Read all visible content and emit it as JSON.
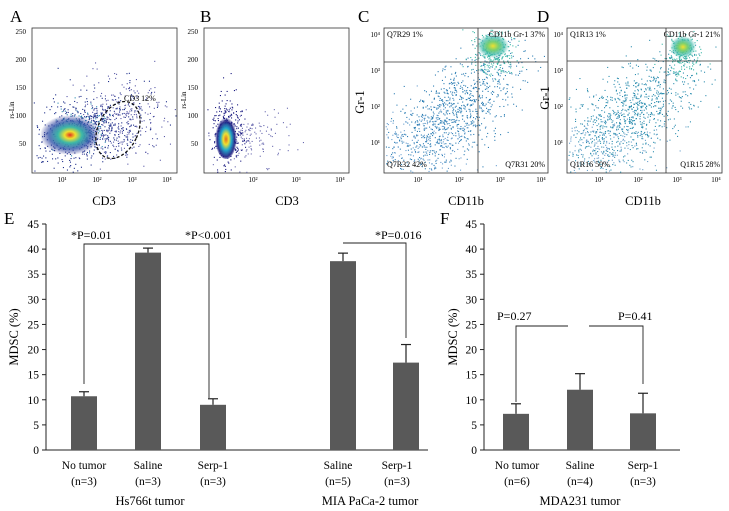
{
  "chart_data": [
    {
      "panel": "A",
      "type": "scatter",
      "xlabel": "CD3",
      "ylabel": "rs-Lin",
      "x_scale": "log",
      "xlim": [
        5,
        10000
      ],
      "ylim": [
        0,
        260
      ],
      "x_ticks": [
        "10¹",
        "10²",
        "10³",
        "10⁴"
      ],
      "y_ticks": [
        "50",
        "100",
        "150",
        "200",
        "250"
      ],
      "gate_label": "CD3 12%",
      "population": {
        "x_center": 15,
        "y_center": 60
      }
    },
    {
      "panel": "B",
      "type": "scatter",
      "xlabel": "CD3",
      "ylabel": "rs-Lin",
      "x_scale": "log",
      "xlim": [
        5,
        10000
      ],
      "ylim": [
        0,
        260
      ],
      "x_ticks": [
        "10²",
        "10³",
        "10⁴"
      ],
      "y_ticks": [
        "50",
        "100",
        "150",
        "200",
        "250"
      ],
      "population": {
        "x_center": 8,
        "y_center": 45
      }
    },
    {
      "panel": "C",
      "type": "scatter",
      "xlabel": "CD11b",
      "ylabel": "Gr-1",
      "x_scale": "log",
      "y_scale": "log",
      "xlim": [
        1,
        10000
      ],
      "ylim": [
        1,
        10000
      ],
      "x_ticks": [
        "10¹",
        "10²",
        "10³",
        "10⁴"
      ],
      "y_ticks": [
        "10¹",
        "10²",
        "10³",
        "10⁴"
      ],
      "quadrants": [
        {
          "label": "Q7R29 1%",
          "position": "top-left"
        },
        {
          "label": "CD11b Gr-1 37%",
          "position": "top-right"
        },
        {
          "label": "Q7R32 42%",
          "position": "bottom-left"
        },
        {
          "label": "Q7R31 20%",
          "position": "bottom-right"
        }
      ]
    },
    {
      "panel": "D",
      "type": "scatter",
      "xlabel": "CD11b",
      "ylabel": "Gr-1",
      "x_scale": "log",
      "y_scale": "log",
      "xlim": [
        1,
        10000
      ],
      "ylim": [
        1,
        10000
      ],
      "x_ticks": [
        "10¹",
        "10²",
        "10³",
        "10⁴"
      ],
      "y_ticks": [
        "10¹",
        "10²",
        "10³",
        "10⁴"
      ],
      "quadrants": [
        {
          "label": "Q1R13 1%",
          "position": "top-left"
        },
        {
          "label": "CD11b Gr-1 21%",
          "position": "top-right"
        },
        {
          "label": "Q1R16 50%",
          "position": "bottom-left"
        },
        {
          "label": "Q1R15 28%",
          "position": "bottom-right"
        }
      ]
    },
    {
      "panel": "E",
      "type": "bar",
      "ylabel": "MDSC (%)",
      "ylim": [
        0,
        45
      ],
      "y_ticks": [
        0,
        5,
        10,
        15,
        20,
        25,
        30,
        35,
        40,
        45
      ],
      "groups": [
        {
          "name": "Hs766t  tumor",
          "bars": [
            {
              "category": "No tumor",
              "n": "(n=3)",
              "value": 10.7,
              "error": 0.9
            },
            {
              "category": "Saline",
              "n": "(n=3)",
              "value": 39.3,
              "error": 0.9
            },
            {
              "category": "Serp-1",
              "n": "(n=3)",
              "value": 9.0,
              "error": 1.2
            }
          ]
        },
        {
          "name": "MIA PaCa-2 tumor",
          "bars": [
            {
              "category": "Saline",
              "n": "(n=5)",
              "value": 37.6,
              "error": 1.6
            },
            {
              "category": "Serp-1",
              "n": "(n=3)",
              "value": 17.4,
              "error": 3.6
            }
          ]
        }
      ],
      "annotations": [
        "*P=0.01",
        "*P<0.001",
        "*P=0.016"
      ]
    },
    {
      "panel": "F",
      "type": "bar",
      "ylabel": "MDSC (%)",
      "ylim": [
        0,
        45
      ],
      "y_ticks": [
        0,
        5,
        10,
        15,
        20,
        25,
        30,
        35,
        40,
        45
      ],
      "groups": [
        {
          "name": "MDA231 tumor",
          "bars": [
            {
              "category": "No tumor",
              "n": "(n=6)",
              "value": 7.2,
              "error": 2.0
            },
            {
              "category": "Saline",
              "n": "(n=4)",
              "value": 12.0,
              "error": 3.2
            },
            {
              "category": "Serp-1",
              "n": "(n=3)",
              "value": 7.3,
              "error": 4.0
            }
          ]
        }
      ],
      "annotations": [
        "P=0.27",
        "P=0.41"
      ]
    }
  ],
  "colors": {
    "bar": "#595959",
    "axis": "#222222",
    "density_low": "#2a2a8c",
    "density_mid": "#3cb8a8",
    "density_high": "#f0e030",
    "density_peak": "#e03020"
  }
}
